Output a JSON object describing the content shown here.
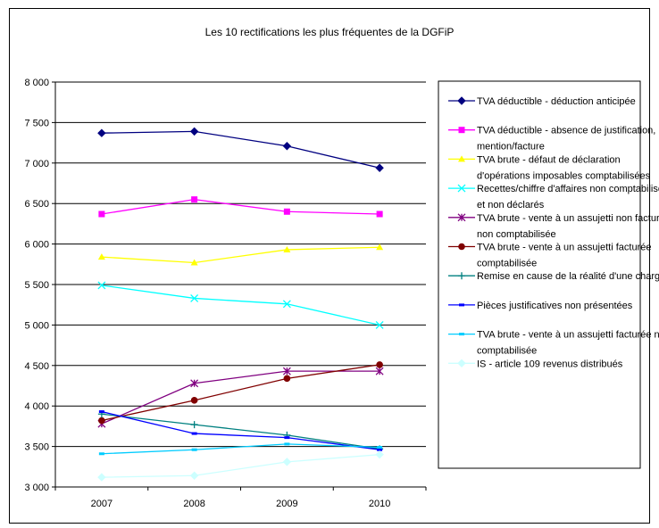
{
  "chart_data": {
    "type": "line",
    "title": "Les 10 rectifications les plus fréquentes de la DGFiP",
    "xlabel": "",
    "ylabel": "",
    "categories": [
      "2007",
      "2008",
      "2009",
      "2010"
    ],
    "ylim": [
      3000,
      8000
    ],
    "yticks": [
      3000,
      3500,
      4000,
      4500,
      5000,
      5500,
      6000,
      6500,
      7000,
      7500,
      8000
    ],
    "ytick_labels": [
      "3 000",
      "3 500",
      "4 000",
      "4 500",
      "5 000",
      "5 500",
      "6 000",
      "6 500",
      "7 000",
      "7 500",
      "8 000"
    ],
    "grid": "horizontal",
    "legend_position": "right",
    "series": [
      {
        "name": "TVA déductible - déduction anticipée",
        "legend_lines": [
          "TVA déductible - déduction anticipée"
        ],
        "values": [
          7370,
          7390,
          7210,
          6940
        ],
        "color": "#000080",
        "marker": "diamond"
      },
      {
        "name": "TVA déductible - absence de justification, mention/facture",
        "legend_lines": [
          "TVA déductible - absence de justification,",
          "mention/facture"
        ],
        "values": [
          6370,
          6550,
          6400,
          6370
        ],
        "color": "#ff00ff",
        "marker": "square"
      },
      {
        "name": "TVA brute - défaut de déclaration d'opérations imposables comptabilisées",
        "legend_lines": [
          "TVA brute - défaut de déclaration",
          "d'opérations imposables comptabilisées"
        ],
        "values": [
          5840,
          5770,
          5930,
          5960
        ],
        "color": "#ffff00",
        "marker": "triangle"
      },
      {
        "name": "Recettes/chiffre d'affaires non comptabilisés et non déclarés",
        "legend_lines": [
          "Recettes/chiffre d'affaires non comptabilisés",
          "et non déclarés"
        ],
        "values": [
          5490,
          5330,
          5260,
          5000
        ],
        "color": "#00ffff",
        "marker": "x"
      },
      {
        "name": "TVA brute - vente à un assujetti non facturée non comptabilisée",
        "legend_lines": [
          "TVA brute - vente à un assujetti non facturée",
          "non comptabilisée"
        ],
        "values": [
          3780,
          4280,
          4430,
          4430
        ],
        "color": "#800080",
        "marker": "star"
      },
      {
        "name": "TVA brute - vente à un assujetti facturée comptabilisée",
        "legend_lines": [
          "TVA brute - vente à un assujetti facturée",
          "comptabilisée"
        ],
        "values": [
          3820,
          4070,
          4340,
          4510
        ],
        "color": "#800000",
        "marker": "circle"
      },
      {
        "name": "Remise en cause de la réalité d'une charge",
        "legend_lines": [
          "Remise en cause de la réalité d'une charge"
        ],
        "values": [
          3900,
          3770,
          3640,
          3470
        ],
        "color": "#008080",
        "marker": "plus"
      },
      {
        "name": "Pièces justificatives non présentées",
        "legend_lines": [
          "Pièces justificatives non présentées"
        ],
        "values": [
          3930,
          3660,
          3610,
          3460
        ],
        "color": "#0000ff",
        "marker": "dash"
      },
      {
        "name": "TVA brute - vente à un assujetti facturée non comptabilisée",
        "legend_lines": [
          "TVA brute - vente à un assujetti facturée non",
          "comptabilisée"
        ],
        "values": [
          3410,
          3460,
          3530,
          3490
        ],
        "color": "#00ccff",
        "marker": "dash"
      },
      {
        "name": "IS - article 109 revenus distribués",
        "legend_lines": [
          "IS - article 109 revenus distribués"
        ],
        "values": [
          3120,
          3140,
          3310,
          3400
        ],
        "color": "#ccffff",
        "marker": "diamond"
      }
    ]
  }
}
